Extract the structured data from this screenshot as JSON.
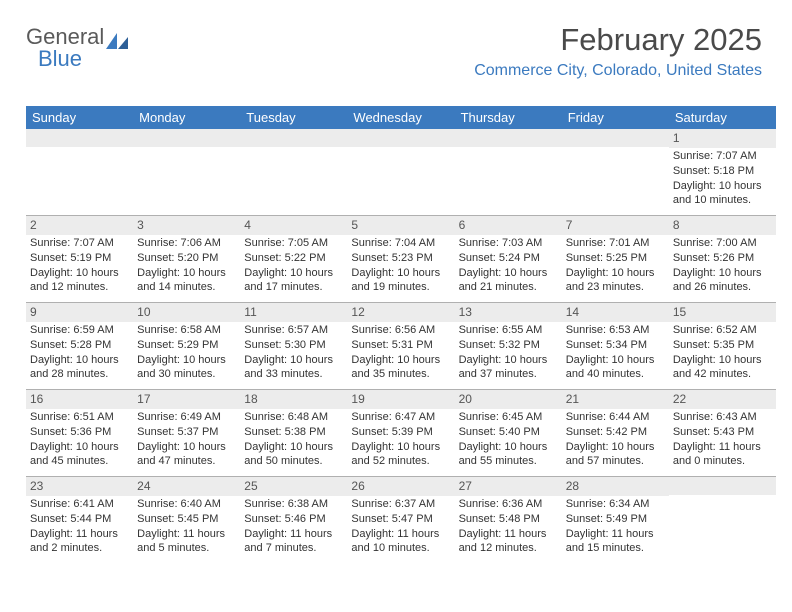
{
  "logo": {
    "part1": "General",
    "part2": "Blue"
  },
  "title": "February 2025",
  "subtitle": "Commerce City, Colorado, United States",
  "colors": {
    "accent": "#3b7abf",
    "header_text": "#ffffff",
    "bar": "#ececec",
    "border": "#b0b0b0"
  },
  "day_headers": [
    "Sunday",
    "Monday",
    "Tuesday",
    "Wednesday",
    "Thursday",
    "Friday",
    "Saturday"
  ],
  "weeks": [
    [
      {
        "n": "",
        "sunrise": "",
        "sunset": "",
        "dl1": "",
        "dl2": ""
      },
      {
        "n": "",
        "sunrise": "",
        "sunset": "",
        "dl1": "",
        "dl2": ""
      },
      {
        "n": "",
        "sunrise": "",
        "sunset": "",
        "dl1": "",
        "dl2": ""
      },
      {
        "n": "",
        "sunrise": "",
        "sunset": "",
        "dl1": "",
        "dl2": ""
      },
      {
        "n": "",
        "sunrise": "",
        "sunset": "",
        "dl1": "",
        "dl2": ""
      },
      {
        "n": "",
        "sunrise": "",
        "sunset": "",
        "dl1": "",
        "dl2": ""
      },
      {
        "n": "1",
        "sunrise": "Sunrise: 7:07 AM",
        "sunset": "Sunset: 5:18 PM",
        "dl1": "Daylight: 10 hours",
        "dl2": "and 10 minutes."
      }
    ],
    [
      {
        "n": "2",
        "sunrise": "Sunrise: 7:07 AM",
        "sunset": "Sunset: 5:19 PM",
        "dl1": "Daylight: 10 hours",
        "dl2": "and 12 minutes."
      },
      {
        "n": "3",
        "sunrise": "Sunrise: 7:06 AM",
        "sunset": "Sunset: 5:20 PM",
        "dl1": "Daylight: 10 hours",
        "dl2": "and 14 minutes."
      },
      {
        "n": "4",
        "sunrise": "Sunrise: 7:05 AM",
        "sunset": "Sunset: 5:22 PM",
        "dl1": "Daylight: 10 hours",
        "dl2": "and 17 minutes."
      },
      {
        "n": "5",
        "sunrise": "Sunrise: 7:04 AM",
        "sunset": "Sunset: 5:23 PM",
        "dl1": "Daylight: 10 hours",
        "dl2": "and 19 minutes."
      },
      {
        "n": "6",
        "sunrise": "Sunrise: 7:03 AM",
        "sunset": "Sunset: 5:24 PM",
        "dl1": "Daylight: 10 hours",
        "dl2": "and 21 minutes."
      },
      {
        "n": "7",
        "sunrise": "Sunrise: 7:01 AM",
        "sunset": "Sunset: 5:25 PM",
        "dl1": "Daylight: 10 hours",
        "dl2": "and 23 minutes."
      },
      {
        "n": "8",
        "sunrise": "Sunrise: 7:00 AM",
        "sunset": "Sunset: 5:26 PM",
        "dl1": "Daylight: 10 hours",
        "dl2": "and 26 minutes."
      }
    ],
    [
      {
        "n": "9",
        "sunrise": "Sunrise: 6:59 AM",
        "sunset": "Sunset: 5:28 PM",
        "dl1": "Daylight: 10 hours",
        "dl2": "and 28 minutes."
      },
      {
        "n": "10",
        "sunrise": "Sunrise: 6:58 AM",
        "sunset": "Sunset: 5:29 PM",
        "dl1": "Daylight: 10 hours",
        "dl2": "and 30 minutes."
      },
      {
        "n": "11",
        "sunrise": "Sunrise: 6:57 AM",
        "sunset": "Sunset: 5:30 PM",
        "dl1": "Daylight: 10 hours",
        "dl2": "and 33 minutes."
      },
      {
        "n": "12",
        "sunrise": "Sunrise: 6:56 AM",
        "sunset": "Sunset: 5:31 PM",
        "dl1": "Daylight: 10 hours",
        "dl2": "and 35 minutes."
      },
      {
        "n": "13",
        "sunrise": "Sunrise: 6:55 AM",
        "sunset": "Sunset: 5:32 PM",
        "dl1": "Daylight: 10 hours",
        "dl2": "and 37 minutes."
      },
      {
        "n": "14",
        "sunrise": "Sunrise: 6:53 AM",
        "sunset": "Sunset: 5:34 PM",
        "dl1": "Daylight: 10 hours",
        "dl2": "and 40 minutes."
      },
      {
        "n": "15",
        "sunrise": "Sunrise: 6:52 AM",
        "sunset": "Sunset: 5:35 PM",
        "dl1": "Daylight: 10 hours",
        "dl2": "and 42 minutes."
      }
    ],
    [
      {
        "n": "16",
        "sunrise": "Sunrise: 6:51 AM",
        "sunset": "Sunset: 5:36 PM",
        "dl1": "Daylight: 10 hours",
        "dl2": "and 45 minutes."
      },
      {
        "n": "17",
        "sunrise": "Sunrise: 6:49 AM",
        "sunset": "Sunset: 5:37 PM",
        "dl1": "Daylight: 10 hours",
        "dl2": "and 47 minutes."
      },
      {
        "n": "18",
        "sunrise": "Sunrise: 6:48 AM",
        "sunset": "Sunset: 5:38 PM",
        "dl1": "Daylight: 10 hours",
        "dl2": "and 50 minutes."
      },
      {
        "n": "19",
        "sunrise": "Sunrise: 6:47 AM",
        "sunset": "Sunset: 5:39 PM",
        "dl1": "Daylight: 10 hours",
        "dl2": "and 52 minutes."
      },
      {
        "n": "20",
        "sunrise": "Sunrise: 6:45 AM",
        "sunset": "Sunset: 5:40 PM",
        "dl1": "Daylight: 10 hours",
        "dl2": "and 55 minutes."
      },
      {
        "n": "21",
        "sunrise": "Sunrise: 6:44 AM",
        "sunset": "Sunset: 5:42 PM",
        "dl1": "Daylight: 10 hours",
        "dl2": "and 57 minutes."
      },
      {
        "n": "22",
        "sunrise": "Sunrise: 6:43 AM",
        "sunset": "Sunset: 5:43 PM",
        "dl1": "Daylight: 11 hours",
        "dl2": "and 0 minutes."
      }
    ],
    [
      {
        "n": "23",
        "sunrise": "Sunrise: 6:41 AM",
        "sunset": "Sunset: 5:44 PM",
        "dl1": "Daylight: 11 hours",
        "dl2": "and 2 minutes."
      },
      {
        "n": "24",
        "sunrise": "Sunrise: 6:40 AM",
        "sunset": "Sunset: 5:45 PM",
        "dl1": "Daylight: 11 hours",
        "dl2": "and 5 minutes."
      },
      {
        "n": "25",
        "sunrise": "Sunrise: 6:38 AM",
        "sunset": "Sunset: 5:46 PM",
        "dl1": "Daylight: 11 hours",
        "dl2": "and 7 minutes."
      },
      {
        "n": "26",
        "sunrise": "Sunrise: 6:37 AM",
        "sunset": "Sunset: 5:47 PM",
        "dl1": "Daylight: 11 hours",
        "dl2": "and 10 minutes."
      },
      {
        "n": "27",
        "sunrise": "Sunrise: 6:36 AM",
        "sunset": "Sunset: 5:48 PM",
        "dl1": "Daylight: 11 hours",
        "dl2": "and 12 minutes."
      },
      {
        "n": "28",
        "sunrise": "Sunrise: 6:34 AM",
        "sunset": "Sunset: 5:49 PM",
        "dl1": "Daylight: 11 hours",
        "dl2": "and 15 minutes."
      },
      {
        "n": "",
        "sunrise": "",
        "sunset": "",
        "dl1": "",
        "dl2": ""
      }
    ]
  ]
}
